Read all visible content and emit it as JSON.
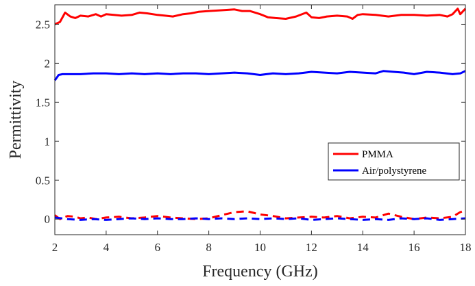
{
  "chart_data": {
    "type": "line",
    "title": "",
    "xlabel": "Frequency (GHz)",
    "ylabel": "Permittivity",
    "xlim": [
      2,
      18
    ],
    "ylim": [
      -0.2,
      2.75
    ],
    "xticks": [
      "2",
      "4",
      "6",
      "8",
      "10",
      "12",
      "14",
      "16",
      "18"
    ],
    "yticks": [
      "0",
      "0.5",
      "1",
      "1.5",
      "2",
      "2.5"
    ],
    "grid": false,
    "legend_position": "right",
    "legend": [
      "PMMA",
      "Air/polystyrene"
    ],
    "series": [
      {
        "name": "PMMA",
        "color": "#ff0000",
        "style": "solid",
        "x": [
          2.0,
          2.2,
          2.4,
          2.6,
          2.8,
          3.0,
          3.3,
          3.6,
          3.8,
          4.0,
          4.3,
          4.6,
          5.0,
          5.3,
          5.6,
          6.0,
          6.3,
          6.6,
          7.0,
          7.3,
          7.6,
          8.0,
          8.5,
          9.0,
          9.3,
          9.6,
          10.0,
          10.3,
          10.6,
          11.0,
          11.4,
          11.8,
          12.0,
          12.3,
          12.6,
          13.0,
          13.4,
          13.6,
          13.8,
          14.0,
          14.5,
          15.0,
          15.5,
          16.0,
          16.5,
          17.0,
          17.3,
          17.5,
          17.7,
          17.8,
          18.0
        ],
        "y": [
          2.5,
          2.53,
          2.65,
          2.6,
          2.58,
          2.61,
          2.6,
          2.63,
          2.6,
          2.63,
          2.62,
          2.61,
          2.62,
          2.65,
          2.64,
          2.62,
          2.61,
          2.6,
          2.63,
          2.64,
          2.66,
          2.67,
          2.68,
          2.69,
          2.67,
          2.67,
          2.63,
          2.59,
          2.58,
          2.57,
          2.6,
          2.65,
          2.59,
          2.58,
          2.6,
          2.61,
          2.6,
          2.57,
          2.62,
          2.63,
          2.62,
          2.6,
          2.62,
          2.62,
          2.61,
          2.62,
          2.6,
          2.63,
          2.7,
          2.63,
          2.7
        ]
      },
      {
        "name": "Air/polystyrene",
        "color": "#0000ff",
        "style": "solid",
        "x": [
          2.0,
          2.15,
          2.3,
          2.6,
          3.0,
          3.5,
          4.0,
          4.5,
          5.0,
          5.5,
          6.0,
          6.5,
          7.0,
          7.5,
          8.0,
          8.5,
          9.0,
          9.5,
          10.0,
          10.5,
          11.0,
          11.5,
          12.0,
          12.5,
          13.0,
          13.5,
          14.0,
          14.5,
          14.8,
          15.2,
          15.6,
          16.0,
          16.5,
          17.0,
          17.5,
          17.8,
          18.0
        ],
        "y": [
          1.78,
          1.85,
          1.86,
          1.86,
          1.86,
          1.87,
          1.87,
          1.86,
          1.87,
          1.86,
          1.87,
          1.86,
          1.87,
          1.87,
          1.86,
          1.87,
          1.88,
          1.87,
          1.85,
          1.87,
          1.86,
          1.87,
          1.89,
          1.88,
          1.87,
          1.89,
          1.88,
          1.87,
          1.9,
          1.89,
          1.88,
          1.86,
          1.89,
          1.88,
          1.86,
          1.87,
          1.9
        ]
      },
      {
        "color": "#ff0000",
        "style": "dashed",
        "x": [
          2.0,
          2.2,
          2.5,
          2.8,
          3.0,
          3.3,
          3.6,
          4.0,
          4.5,
          5.0,
          5.5,
          6.0,
          6.5,
          7.0,
          7.5,
          8.0,
          8.5,
          9.0,
          9.5,
          10.0,
          10.5,
          11.0,
          11.5,
          12.0,
          12.5,
          13.0,
          13.5,
          14.0,
          14.5,
          15.0,
          15.5,
          16.0,
          16.5,
          17.0,
          17.5,
          17.8,
          18.0
        ],
        "y": [
          0.05,
          0.0,
          0.04,
          0.03,
          0.01,
          0.02,
          0.0,
          0.02,
          0.03,
          0.01,
          0.02,
          0.04,
          0.02,
          0.01,
          0.0,
          0.01,
          0.05,
          0.09,
          0.1,
          0.06,
          0.04,
          0.01,
          0.02,
          0.03,
          0.02,
          0.04,
          0.01,
          0.03,
          0.02,
          0.07,
          0.03,
          0.0,
          0.02,
          0.01,
          0.03,
          0.09,
          0.11
        ]
      },
      {
        "color": "#0000ff",
        "style": "dashed",
        "x": [
          2.0,
          2.5,
          3.0,
          3.5,
          4.0,
          4.5,
          5.0,
          5.5,
          6.0,
          6.5,
          7.0,
          7.5,
          8.0,
          8.5,
          9.0,
          9.5,
          10.0,
          10.5,
          11.0,
          11.5,
          12.0,
          12.5,
          13.0,
          13.5,
          14.0,
          14.5,
          15.0,
          15.5,
          16.0,
          16.5,
          17.0,
          17.5,
          18.0
        ],
        "y": [
          0.02,
          0.0,
          -0.01,
          0.0,
          -0.01,
          0.0,
          0.01,
          0.0,
          0.01,
          0.0,
          0.0,
          0.01,
          0.0,
          0.01,
          0.0,
          0.01,
          0.0,
          0.01,
          0.0,
          0.01,
          -0.01,
          0.0,
          0.01,
          0.0,
          -0.01,
          0.0,
          -0.01,
          0.01,
          0.0,
          0.01,
          -0.01,
          0.0,
          0.01
        ]
      }
    ]
  }
}
